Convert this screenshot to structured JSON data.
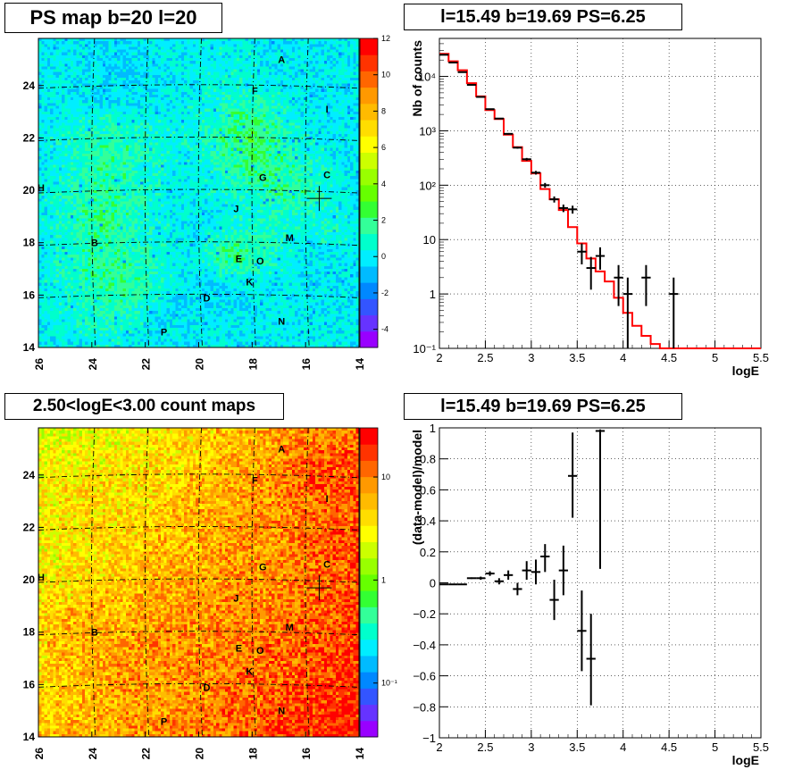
{
  "titles": {
    "map1": "PS map b=20 l=20",
    "spec": "l=15.49 b=19.69 PS=6.25",
    "map2": "2.50<logE<3.00 count maps",
    "resid": "l=15.49 b=19.69 PS=6.25"
  },
  "colors": {
    "model_line": "#ff0000",
    "data_points": "#000000",
    "grid": "#000000"
  },
  "chart_data": [
    {
      "type": "heatmap",
      "title": "PS map b=20 l=20",
      "xlim": [
        26,
        14
      ],
      "ylim": [
        14,
        25.8
      ],
      "x_ticks": [
        "26",
        "24",
        "22",
        "20",
        "18",
        "16",
        "14"
      ],
      "y_ticks": [
        "14",
        "16",
        "18",
        "20",
        "22",
        "24"
      ],
      "colorbar": {
        "range": [
          -5,
          12
        ],
        "ticks": [
          "-4",
          "-2",
          "0",
          "2",
          "4",
          "6",
          "8",
          "10",
          "12"
        ],
        "palette": [
          "#9900ff",
          "#6633ff",
          "#3355ff",
          "#0088ff",
          "#00bbff",
          "#00eeff",
          "#00ffcc",
          "#33ff99",
          "#33ff33",
          "#66ff00",
          "#99ff00",
          "#ccff00",
          "#ffff00",
          "#ffdd00",
          "#ffbb00",
          "#ff9900",
          "#ff6600",
          "#ff3300",
          "#ff0000"
        ]
      },
      "sources": [
        {
          "label": "A",
          "l": 16.9,
          "b": 25.0
        },
        {
          "label": "F",
          "l": 17.9,
          "b": 23.8
        },
        {
          "label": "I",
          "l": 15.2,
          "b": 23.1
        },
        {
          "label": "C",
          "l": 15.2,
          "b": 20.6
        },
        {
          "label": "G",
          "l": 17.6,
          "b": 20.5
        },
        {
          "label": "H",
          "l": 25.9,
          "b": 20.1
        },
        {
          "label": "J",
          "l": 18.6,
          "b": 19.3
        },
        {
          "label": "M",
          "l": 16.6,
          "b": 18.2
        },
        {
          "label": "B",
          "l": 23.9,
          "b": 18.0
        },
        {
          "label": "E",
          "l": 18.5,
          "b": 17.4
        },
        {
          "label": "O",
          "l": 17.7,
          "b": 17.3
        },
        {
          "label": "K",
          "l": 18.1,
          "b": 16.5
        },
        {
          "label": "D",
          "l": 19.7,
          "b": 15.9
        },
        {
          "label": "N",
          "l": 16.9,
          "b": 15.0
        },
        {
          "label": "P",
          "l": 21.3,
          "b": 14.6
        }
      ],
      "marker": {
        "l": 15.49,
        "b": 19.69
      }
    },
    {
      "type": "line",
      "title": "l=15.49 b=19.69 PS=6.25",
      "xlabel": "logE",
      "ylabel": "Nb of counts",
      "yscale": "log",
      "xlim": [
        2,
        5.5
      ],
      "ylim": [
        0.1,
        50000
      ],
      "x_ticks": [
        "2",
        "2.5",
        "3",
        "3.5",
        "4",
        "4.5",
        "5",
        "5.5"
      ],
      "y_ticks": [
        {
          "v": 0.1,
          "label": "10⁻¹"
        },
        {
          "v": 1,
          "label": "1"
        },
        {
          "v": 10,
          "label": "10"
        },
        {
          "v": 100,
          "label": "10²"
        },
        {
          "v": 1000,
          "label": "10³"
        },
        {
          "v": 10000,
          "label": "10⁴"
        }
      ],
      "grid": true,
      "model": {
        "bin_edges": [
          2.0,
          2.1,
          2.2,
          2.3,
          2.4,
          2.5,
          2.6,
          2.7,
          2.8,
          2.9,
          3.0,
          3.1,
          3.2,
          3.3,
          3.4,
          3.5,
          3.6,
          3.7,
          3.8,
          3.9,
          4.0,
          4.1,
          4.2,
          4.3,
          4.4,
          5.5
        ],
        "values": [
          26000,
          19000,
          13000,
          7500,
          4300,
          2400,
          1650,
          850,
          500,
          280,
          165,
          85,
          55,
          35,
          17,
          8.5,
          4.5,
          2.6,
          1.7,
          0.85,
          0.45,
          0.26,
          0.17,
          0.12,
          0.1
        ]
      },
      "data": [
        {
          "x": 2.05,
          "y": 25000,
          "xerr": 0.05,
          "ylo": 24500,
          "yhi": 25500
        },
        {
          "x": 2.15,
          "y": 18000,
          "xerr": 0.05,
          "ylo": 17700,
          "yhi": 18300
        },
        {
          "x": 2.25,
          "y": 12000,
          "xerr": 0.05,
          "ylo": 11800,
          "yhi": 12200
        },
        {
          "x": 2.35,
          "y": 7000,
          "xerr": 0.05,
          "ylo": 6900,
          "yhi": 7100
        },
        {
          "x": 2.45,
          "y": 4200,
          "xerr": 0.05,
          "ylo": 4100,
          "yhi": 4300
        },
        {
          "x": 2.55,
          "y": 2500,
          "xerr": 0.05,
          "ylo": 2450,
          "yhi": 2550
        },
        {
          "x": 2.65,
          "y": 1680,
          "xerr": 0.05,
          "ylo": 1640,
          "yhi": 1720
        },
        {
          "x": 2.75,
          "y": 880,
          "xerr": 0.05,
          "ylo": 850,
          "yhi": 910
        },
        {
          "x": 2.85,
          "y": 490,
          "xerr": 0.05,
          "ylo": 470,
          "yhi": 510
        },
        {
          "x": 2.95,
          "y": 300,
          "xerr": 0.05,
          "ylo": 283,
          "yhi": 317
        },
        {
          "x": 3.05,
          "y": 170,
          "xerr": 0.05,
          "ylo": 157,
          "yhi": 183
        },
        {
          "x": 3.15,
          "y": 100,
          "xerr": 0.05,
          "ylo": 90,
          "yhi": 110
        },
        {
          "x": 3.25,
          "y": 55,
          "xerr": 0.05,
          "ylo": 48,
          "yhi": 62
        },
        {
          "x": 3.35,
          "y": 38,
          "xerr": 0.05,
          "ylo": 32,
          "yhi": 44
        },
        {
          "x": 3.45,
          "y": 36,
          "xerr": 0.05,
          "ylo": 30,
          "yhi": 42
        },
        {
          "x": 3.55,
          "y": 6,
          "xerr": 0.05,
          "ylo": 3.5,
          "yhi": 8.5
        },
        {
          "x": 3.65,
          "y": 3,
          "xerr": 0.05,
          "ylo": 1.2,
          "yhi": 4.8
        },
        {
          "x": 3.75,
          "y": 5,
          "xerr": 0.05,
          "ylo": 2.8,
          "yhi": 7.2
        },
        {
          "x": 3.95,
          "y": 2,
          "xerr": 0.05,
          "ylo": 0.6,
          "yhi": 3.4
        },
        {
          "x": 4.05,
          "y": 1,
          "xerr": 0.05,
          "ylo": 0.1,
          "yhi": 2.0
        },
        {
          "x": 4.25,
          "y": 2,
          "xerr": 0.05,
          "ylo": 0.6,
          "yhi": 3.4
        },
        {
          "x": 4.55,
          "y": 1,
          "xerr": 0.05,
          "ylo": 0.1,
          "yhi": 2.0
        }
      ]
    },
    {
      "type": "heatmap",
      "title": "2.50<logE<3.00 count maps",
      "xlim": [
        26,
        14
      ],
      "ylim": [
        14,
        25.8
      ],
      "x_ticks": [
        "26",
        "24",
        "22",
        "20",
        "18",
        "16",
        "14"
      ],
      "y_ticks": [
        "14",
        "16",
        "18",
        "20",
        "22",
        "24"
      ],
      "colorbar": {
        "scale": "log",
        "range": [
          0.03,
          30
        ],
        "ticks": [
          {
            "v": 0.1,
            "label": "10⁻¹"
          },
          {
            "v": 1,
            "label": "1"
          },
          {
            "v": 10,
            "label": "10"
          }
        ],
        "palette": [
          "#9900ff",
          "#6633ff",
          "#3355ff",
          "#0088ff",
          "#00bbff",
          "#00eeff",
          "#00ffcc",
          "#33ff99",
          "#33ff33",
          "#66ff00",
          "#99ff00",
          "#ccff00",
          "#ffff00",
          "#ffdd00",
          "#ffbb00",
          "#ff9900",
          "#ff6600",
          "#ff3300",
          "#ff0000"
        ]
      },
      "sources": [
        {
          "label": "A",
          "l": 16.9,
          "b": 25.0
        },
        {
          "label": "F",
          "l": 17.9,
          "b": 23.8
        },
        {
          "label": "I",
          "l": 15.2,
          "b": 23.1
        },
        {
          "label": "C",
          "l": 15.2,
          "b": 20.6
        },
        {
          "label": "G",
          "l": 17.6,
          "b": 20.5
        },
        {
          "label": "H",
          "l": 25.9,
          "b": 20.1
        },
        {
          "label": "J",
          "l": 18.6,
          "b": 19.3
        },
        {
          "label": "M",
          "l": 16.6,
          "b": 18.2
        },
        {
          "label": "B",
          "l": 23.9,
          "b": 18.0
        },
        {
          "label": "E",
          "l": 18.5,
          "b": 17.4
        },
        {
          "label": "O",
          "l": 17.7,
          "b": 17.3
        },
        {
          "label": "K",
          "l": 18.1,
          "b": 16.5
        },
        {
          "label": "D",
          "l": 19.7,
          "b": 15.9
        },
        {
          "label": "N",
          "l": 16.9,
          "b": 15.0
        },
        {
          "label": "P",
          "l": 21.3,
          "b": 14.6
        }
      ],
      "marker": {
        "l": 15.49,
        "b": 19.69
      }
    },
    {
      "type": "scatter",
      "title": "l=15.49 b=19.69 PS=6.25",
      "xlabel": "logE",
      "ylabel": "(data-model)/model",
      "xlim": [
        2,
        5.5
      ],
      "ylim": [
        -1,
        1
      ],
      "x_ticks": [
        "2",
        "2.5",
        "3",
        "3.5",
        "4",
        "4.5",
        "5",
        "5.5"
      ],
      "y_ticks": [
        "−1",
        "−0.8",
        "−0.6",
        "−0.4",
        "−0.2",
        "0",
        "0.2",
        "0.4",
        "0.6",
        "0.8",
        "1"
      ],
      "grid": true,
      "data": [
        {
          "x": 2.05,
          "y": -0.01,
          "xerr": 0.05,
          "ylo": -0.012,
          "yhi": -0.008
        },
        {
          "x": 2.15,
          "y": -0.01,
          "xerr": 0.05,
          "ylo": -0.012,
          "yhi": -0.008
        },
        {
          "x": 2.25,
          "y": -0.01,
          "xerr": 0.05,
          "ylo": -0.012,
          "yhi": -0.008
        },
        {
          "x": 2.35,
          "y": 0.03,
          "xerr": 0.05,
          "ylo": 0.025,
          "yhi": 0.035
        },
        {
          "x": 2.45,
          "y": 0.03,
          "xerr": 0.05,
          "ylo": 0.02,
          "yhi": 0.04
        },
        {
          "x": 2.55,
          "y": 0.06,
          "xerr": 0.05,
          "ylo": 0.045,
          "yhi": 0.075
        },
        {
          "x": 2.65,
          "y": 0.01,
          "xerr": 0.05,
          "ylo": -0.01,
          "yhi": 0.03
        },
        {
          "x": 2.75,
          "y": 0.05,
          "xerr": 0.05,
          "ylo": 0.02,
          "yhi": 0.08
        },
        {
          "x": 2.85,
          "y": -0.04,
          "xerr": 0.05,
          "ylo": -0.08,
          "yhi": 0.0
        },
        {
          "x": 2.95,
          "y": 0.08,
          "xerr": 0.05,
          "ylo": 0.02,
          "yhi": 0.14
        },
        {
          "x": 3.05,
          "y": 0.07,
          "xerr": 0.05,
          "ylo": -0.01,
          "yhi": 0.15
        },
        {
          "x": 3.15,
          "y": 0.17,
          "xerr": 0.05,
          "ylo": 0.07,
          "yhi": 0.25
        },
        {
          "x": 3.25,
          "y": -0.11,
          "xerr": 0.05,
          "ylo": -0.24,
          "yhi": 0.02
        },
        {
          "x": 3.35,
          "y": 0.08,
          "xerr": 0.05,
          "ylo": -0.08,
          "yhi": 0.24
        },
        {
          "x": 3.45,
          "y": 0.69,
          "xerr": 0.05,
          "ylo": 0.42,
          "yhi": 0.97
        },
        {
          "x": 3.55,
          "y": -0.31,
          "xerr": 0.05,
          "ylo": -0.57,
          "yhi": -0.05
        },
        {
          "x": 3.65,
          "y": -0.49,
          "xerr": 0.05,
          "ylo": -0.79,
          "yhi": -0.2
        },
        {
          "x": 3.75,
          "y": 0.98,
          "xerr": 0.05,
          "ylo": 0.09,
          "yhi": 0.99
        }
      ]
    }
  ]
}
